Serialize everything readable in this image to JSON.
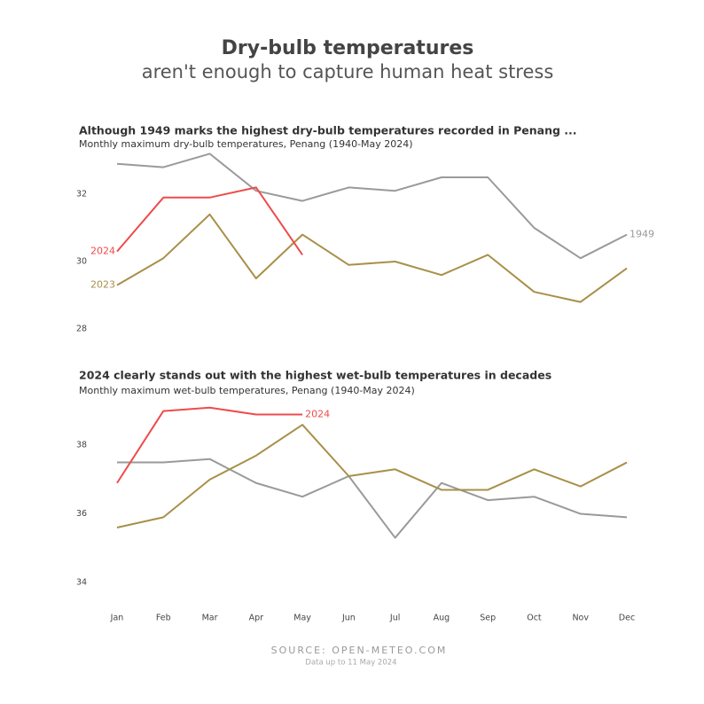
{
  "title": "Dry-bulb temperatures",
  "subtitle": "aren't enough to capture human heat stress",
  "source": "SOURCE: OPEN-METEO.COM",
  "note": "Data up to 11 May 2024",
  "chart_data": [
    {
      "type": "line",
      "title": "Although 1949 marks the highest dry-bulb temperatures recorded in Penang ...",
      "subtitle": "Monthly maximum dry-bulb temperatures, Penang (1940-May 2024)",
      "ylim": [
        27.4,
        33.4
      ],
      "yticks": [
        28,
        30,
        32
      ],
      "series": [
        {
          "name": "1949",
          "color": "#9a9a9a",
          "values": [
            32.9,
            32.8,
            33.2,
            32.1,
            31.8,
            32.2,
            32.1,
            32.5,
            32.5,
            31.0,
            30.1,
            30.8
          ]
        },
        {
          "name": "2023",
          "color": "#a89048",
          "values": [
            29.3,
            30.1,
            31.4,
            29.5,
            30.8,
            29.9,
            30.0,
            29.6,
            30.2,
            29.1,
            28.8,
            29.8
          ]
        },
        {
          "name": "2024",
          "color": "#ee4b4b",
          "values": [
            30.3,
            31.9,
            31.9,
            32.2,
            30.2,
            null,
            null,
            null,
            null,
            null,
            null,
            null
          ]
        }
      ]
    },
    {
      "type": "line",
      "title": "2024 clearly stands out with the highest wet-bulb temperatures in decades",
      "subtitle": "Monthly maximum wet-bulb temperatures, Penang (1940-May 2024)",
      "categories": [
        "Jan",
        "Feb",
        "Mar",
        "Apr",
        "May",
        "Jun",
        "Jul",
        "Aug",
        "Sep",
        "Oct",
        "Nov",
        "Dec"
      ],
      "ylim": [
        33.4,
        39.3
      ],
      "yticks": [
        34,
        36,
        38
      ],
      "series": [
        {
          "color": "#9a9a9a",
          "values": [
            37.5,
            37.5,
            37.6,
            36.9,
            36.5,
            37.1,
            35.3,
            36.9,
            36.4,
            36.5,
            36.0,
            35.9
          ]
        },
        {
          "color": "#a89048",
          "values": [
            35.6,
            35.9,
            37.0,
            37.7,
            38.6,
            37.1,
            37.3,
            36.7,
            36.7,
            37.3,
            36.8,
            37.5
          ]
        },
        {
          "name": "2024",
          "color": "#ee4b4b",
          "values": [
            36.9,
            39.0,
            39.1,
            38.9,
            38.9,
            null,
            null,
            null,
            null,
            null,
            null,
            null
          ]
        }
      ]
    }
  ]
}
